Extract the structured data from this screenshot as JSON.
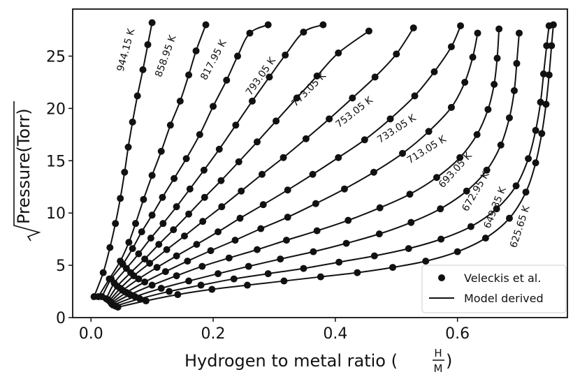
{
  "chart_data": {
    "type": "scatter",
    "xlabel": "Hydrogen to metal ratio (H/M)",
    "xlabel_text": "Hydrogen to metal ratio (",
    "xlabel_frac_num": "H",
    "xlabel_frac_den": "M",
    "xlabel_close": ")",
    "ylabel": "√Pressure(Torr)",
    "ylabel_text": "Pressure(Torr)",
    "xlim": [
      -0.03,
      0.78
    ],
    "ylim": [
      0,
      29.5
    ],
    "xticks": [
      {
        "value": 0.0,
        "label": "0.0"
      },
      {
        "value": 0.2,
        "label": "0.2"
      },
      {
        "value": 0.4,
        "label": "0.4"
      },
      {
        "value": 0.6,
        "label": "0.6"
      }
    ],
    "yticks": [
      {
        "value": 0,
        "label": "0"
      },
      {
        "value": 5,
        "label": "5"
      },
      {
        "value": 10,
        "label": "10"
      },
      {
        "value": 15,
        "label": "15"
      },
      {
        "value": 20,
        "label": "20"
      },
      {
        "value": 25,
        "label": "25"
      }
    ],
    "legend": {
      "position": "lower right",
      "entries": [
        {
          "label": "Veleckis et al.",
          "marker": "dot"
        },
        {
          "label": "Model derived",
          "marker": "line"
        }
      ]
    },
    "series": [
      {
        "name": "944.15 K",
        "points": [
          [
            0.005,
            2.0
          ],
          [
            0.02,
            4.3
          ],
          [
            0.031,
            6.7
          ],
          [
            0.04,
            9.0
          ],
          [
            0.048,
            11.4
          ],
          [
            0.055,
            13.9
          ],
          [
            0.061,
            16.3
          ],
          [
            0.068,
            18.7
          ],
          [
            0.076,
            21.2
          ],
          [
            0.085,
            23.7
          ],
          [
            0.093,
            26.1
          ],
          [
            0.1,
            28.2
          ]
        ],
        "label_at": [
          0.062,
          25.5
        ],
        "label_angle": -75
      },
      {
        "name": "858.95 K",
        "points": [
          [
            0.012,
            2.0
          ],
          [
            0.03,
            3.7
          ],
          [
            0.048,
            5.4
          ],
          [
            0.062,
            7.2
          ],
          [
            0.073,
            9.0
          ],
          [
            0.086,
            11.3
          ],
          [
            0.1,
            13.6
          ],
          [
            0.115,
            15.9
          ],
          [
            0.13,
            18.4
          ],
          [
            0.146,
            20.7
          ],
          [
            0.16,
            23.2
          ],
          [
            0.172,
            25.5
          ],
          [
            0.188,
            28.0
          ]
        ],
        "label_at": [
          0.127,
          24.9
        ],
        "label_angle": -70
      },
      {
        "name": "817.95 K",
        "points": [
          [
            0.018,
            2.0
          ],
          [
            0.033,
            3.7
          ],
          [
            0.052,
            5.1
          ],
          [
            0.068,
            6.6
          ],
          [
            0.083,
            8.2
          ],
          [
            0.1,
            9.8
          ],
          [
            0.117,
            11.5
          ],
          [
            0.136,
            13.3
          ],
          [
            0.156,
            15.2
          ],
          [
            0.178,
            17.5
          ],
          [
            0.2,
            20.2
          ],
          [
            0.222,
            22.7
          ],
          [
            0.24,
            25.0
          ],
          [
            0.26,
            27.2
          ],
          [
            0.29,
            28.0
          ]
        ],
        "label_at": [
          0.205,
          24.5
        ],
        "label_angle": -62
      },
      {
        "name": "793.05 K",
        "points": [
          [
            0.025,
            1.8
          ],
          [
            0.038,
            3.3
          ],
          [
            0.058,
            4.7
          ],
          [
            0.078,
            6.1
          ],
          [
            0.098,
            7.6
          ],
          [
            0.118,
            9.0
          ],
          [
            0.14,
            10.6
          ],
          [
            0.162,
            12.3
          ],
          [
            0.185,
            14.1
          ],
          [
            0.21,
            16.1
          ],
          [
            0.237,
            18.4
          ],
          [
            0.264,
            20.7
          ],
          [
            0.292,
            23.0
          ],
          [
            0.318,
            25.1
          ],
          [
            0.348,
            27.3
          ],
          [
            0.38,
            28.0
          ]
        ],
        "label_at": [
          0.282,
          22.9
        ],
        "label_angle": -55
      },
      {
        "name": "773.05 K",
        "points": [
          [
            0.028,
            1.7
          ],
          [
            0.043,
            3.0
          ],
          [
            0.065,
            4.3
          ],
          [
            0.088,
            5.6
          ],
          [
            0.111,
            7.0
          ],
          [
            0.135,
            8.4
          ],
          [
            0.16,
            9.9
          ],
          [
            0.186,
            11.5
          ],
          [
            0.213,
            13.1
          ],
          [
            0.242,
            14.9
          ],
          [
            0.272,
            16.8
          ],
          [
            0.303,
            18.8
          ],
          [
            0.337,
            21.0
          ],
          [
            0.37,
            23.1
          ],
          [
            0.405,
            25.3
          ],
          [
            0.455,
            27.4
          ]
        ],
        "label_at": [
          0.36,
          21.6
        ],
        "label_angle": -45
      },
      {
        "name": "753.05 K",
        "points": [
          [
            0.03,
            1.6
          ],
          [
            0.048,
            2.8
          ],
          [
            0.07,
            4.0
          ],
          [
            0.096,
            5.2
          ],
          [
            0.124,
            6.5
          ],
          [
            0.153,
            7.8
          ],
          [
            0.183,
            9.2
          ],
          [
            0.214,
            10.6
          ],
          [
            0.246,
            12.1
          ],
          [
            0.28,
            13.7
          ],
          [
            0.315,
            15.3
          ],
          [
            0.352,
            17.1
          ],
          [
            0.39,
            19.0
          ],
          [
            0.428,
            21.0
          ],
          [
            0.465,
            23.0
          ],
          [
            0.5,
            25.2
          ],
          [
            0.528,
            27.7
          ]
        ],
        "label_at": [
          0.434,
          19.4
        ],
        "label_angle": -38
      },
      {
        "name": "733.05 K",
        "points": [
          [
            0.032,
            1.5
          ],
          [
            0.052,
            2.6
          ],
          [
            0.078,
            3.7
          ],
          [
            0.108,
            4.8
          ],
          [
            0.14,
            5.9
          ],
          [
            0.173,
            7.0
          ],
          [
            0.208,
            8.2
          ],
          [
            0.244,
            9.5
          ],
          [
            0.282,
            10.8
          ],
          [
            0.322,
            12.2
          ],
          [
            0.363,
            13.7
          ],
          [
            0.405,
            15.3
          ],
          [
            0.448,
            17.0
          ],
          [
            0.49,
            19.0
          ],
          [
            0.53,
            21.2
          ],
          [
            0.562,
            23.5
          ],
          [
            0.59,
            25.9
          ],
          [
            0.605,
            27.9
          ]
        ],
        "label_at": [
          0.503,
          17.8
        ],
        "label_angle": -33
      },
      {
        "name": "713.05 K",
        "points": [
          [
            0.033,
            1.4
          ],
          [
            0.058,
            2.4
          ],
          [
            0.088,
            3.4
          ],
          [
            0.122,
            4.4
          ],
          [
            0.158,
            5.4
          ],
          [
            0.196,
            6.4
          ],
          [
            0.236,
            7.4
          ],
          [
            0.278,
            8.5
          ],
          [
            0.322,
            9.6
          ],
          [
            0.368,
            10.9
          ],
          [
            0.415,
            12.3
          ],
          [
            0.463,
            13.9
          ],
          [
            0.51,
            15.7
          ],
          [
            0.553,
            17.8
          ],
          [
            0.59,
            20.1
          ],
          [
            0.612,
            22.5
          ],
          [
            0.625,
            24.9
          ],
          [
            0.633,
            27.2
          ]
        ],
        "label_at": [
          0.552,
          15.8
        ],
        "label_angle": -32
      },
      {
        "name": "693.05 K",
        "points": [
          [
            0.034,
            1.3
          ],
          [
            0.064,
            2.2
          ],
          [
            0.1,
            3.1
          ],
          [
            0.14,
            4.0
          ],
          [
            0.182,
            4.9
          ],
          [
            0.226,
            5.7
          ],
          [
            0.272,
            6.5
          ],
          [
            0.32,
            7.4
          ],
          [
            0.37,
            8.3
          ],
          [
            0.421,
            9.3
          ],
          [
            0.473,
            10.5
          ],
          [
            0.522,
            11.8
          ],
          [
            0.566,
            13.4
          ],
          [
            0.604,
            15.3
          ],
          [
            0.632,
            17.5
          ],
          [
            0.65,
            19.9
          ],
          [
            0.66,
            22.3
          ],
          [
            0.665,
            24.8
          ],
          [
            0.668,
            27.6
          ]
        ],
        "label_at": [
          0.6,
          13.9
        ],
        "label_angle": -48
      },
      {
        "name": "672.95 K",
        "points": [
          [
            0.036,
            1.2
          ],
          [
            0.072,
            2.0
          ],
          [
            0.115,
            2.8
          ],
          [
            0.16,
            3.5
          ],
          [
            0.208,
            4.2
          ],
          [
            0.258,
            4.9
          ],
          [
            0.31,
            5.6
          ],
          [
            0.364,
            6.3
          ],
          [
            0.418,
            7.1
          ],
          [
            0.472,
            8.0
          ],
          [
            0.524,
            9.1
          ],
          [
            0.572,
            10.4
          ],
          [
            0.615,
            12.1
          ],
          [
            0.648,
            14.1
          ],
          [
            0.671,
            16.5
          ],
          [
            0.685,
            19.1
          ],
          [
            0.693,
            21.7
          ],
          [
            0.697,
            24.3
          ],
          [
            0.701,
            27.2
          ]
        ],
        "label_at": [
          0.634,
          11.9
        ],
        "label_angle": -60
      },
      {
        "name": "649.35 K",
        "points": [
          [
            0.04,
            1.1
          ],
          [
            0.08,
            1.8
          ],
          [
            0.128,
            2.5
          ],
          [
            0.18,
            3.1
          ],
          [
            0.234,
            3.7
          ],
          [
            0.29,
            4.2
          ],
          [
            0.348,
            4.7
          ],
          [
            0.406,
            5.3
          ],
          [
            0.464,
            5.9
          ],
          [
            0.52,
            6.6
          ],
          [
            0.573,
            7.5
          ],
          [
            0.622,
            8.7
          ],
          [
            0.664,
            10.4
          ],
          [
            0.696,
            12.6
          ],
          [
            0.716,
            15.2
          ],
          [
            0.728,
            17.9
          ],
          [
            0.736,
            20.6
          ],
          [
            0.741,
            23.3
          ],
          [
            0.746,
            26.0
          ],
          [
            0.75,
            27.9
          ]
        ],
        "label_at": [
          0.666,
          10.4
        ],
        "label_angle": -68
      },
      {
        "name": "625.65 K",
        "points": [
          [
            0.044,
            1.0
          ],
          [
            0.09,
            1.6
          ],
          [
            0.142,
            2.2
          ],
          [
            0.198,
            2.7
          ],
          [
            0.256,
            3.1
          ],
          [
            0.316,
            3.5
          ],
          [
            0.376,
            3.9
          ],
          [
            0.436,
            4.3
          ],
          [
            0.494,
            4.8
          ],
          [
            0.548,
            5.4
          ],
          [
            0.6,
            6.3
          ],
          [
            0.646,
            7.6
          ],
          [
            0.685,
            9.5
          ],
          [
            0.712,
            12.0
          ],
          [
            0.728,
            14.8
          ],
          [
            0.738,
            17.6
          ],
          [
            0.745,
            20.4
          ],
          [
            0.75,
            23.2
          ],
          [
            0.754,
            26.0
          ],
          [
            0.757,
            28.0
          ]
        ],
        "label_at": [
          0.707,
          8.6
        ],
        "label_angle": -72
      }
    ]
  }
}
